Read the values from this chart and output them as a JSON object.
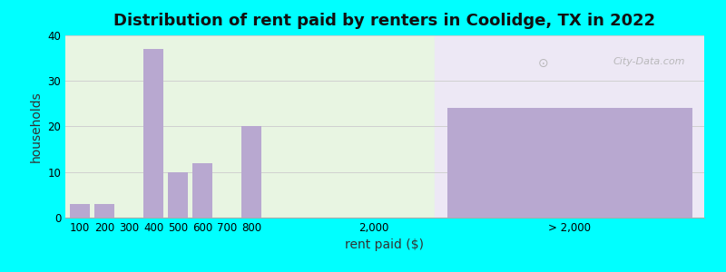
{
  "title": "Distribution of rent paid by renters in Coolidge, TX in 2022",
  "xlabel": "rent paid ($)",
  "ylabel": "households",
  "background_outer": "#00FFFF",
  "background_inner": "#e8f5e2",
  "background_right": "#ede8f5",
  "bar_color": "#b8a8d0",
  "ylim": [
    0,
    40
  ],
  "yticks": [
    0,
    10,
    20,
    30,
    40
  ],
  "categories": [
    "100",
    "200",
    "300",
    "400",
    "500",
    "600",
    "700",
    "800"
  ],
  "values": [
    3,
    3,
    0,
    37,
    10,
    12,
    0,
    20
  ],
  "label_2000": "2,000",
  "label_gt2000": "> 2,000",
  "value_gt2000": 24,
  "watermark": "City-Data.com",
  "title_fontsize": 13,
  "axis_label_fontsize": 10,
  "tick_fontsize": 8.5
}
